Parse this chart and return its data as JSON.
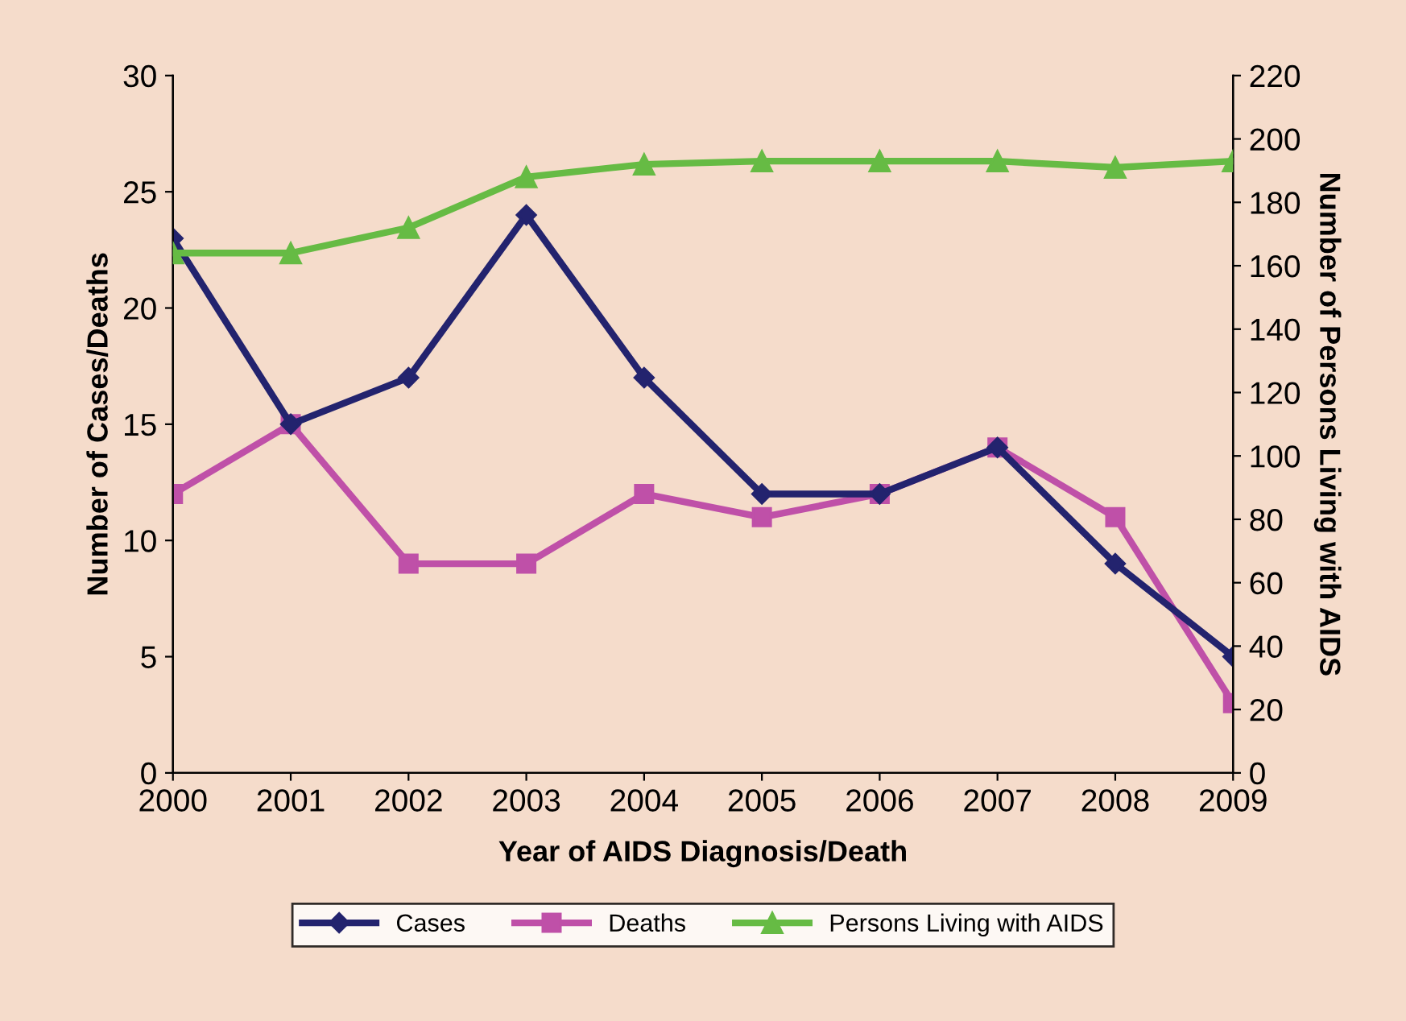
{
  "chart_data": {
    "type": "line",
    "xlabel": "Year of AIDS Diagnosis/Death",
    "ylabel": "Number of Cases/Deaths",
    "y2label": "Number of Persons Living with AIDS",
    "categories": [
      "2000",
      "2001",
      "2002",
      "2003",
      "2004",
      "2005",
      "2006",
      "2007",
      "2008",
      "2009"
    ],
    "series": [
      {
        "name": "Cases",
        "color": "#23236e",
        "marker": "diamond",
        "values": [
          23,
          15,
          17,
          24,
          17,
          12,
          12,
          14,
          9,
          5
        ]
      },
      {
        "name": "Deaths",
        "color": "#bf50a8",
        "marker": "square",
        "values": [
          12,
          15,
          9,
          9,
          12,
          11,
          12,
          14,
          11,
          3
        ]
      },
      {
        "name": "Persons Living with AIDS",
        "color": "#66bb44",
        "marker": "triangle",
        "axis": "y2",
        "values": [
          164,
          164,
          172,
          188,
          192,
          193,
          193,
          193,
          191,
          193
        ]
      }
    ],
    "ylim": [
      0,
      30
    ],
    "yticks": [
      0,
      5,
      10,
      15,
      20,
      25,
      30
    ],
    "y2lim": [
      0,
      220
    ],
    "y2ticks": [
      0,
      20,
      40,
      60,
      80,
      100,
      120,
      140,
      160,
      180,
      200,
      220
    ],
    "grid": false,
    "legend": "bottom"
  }
}
